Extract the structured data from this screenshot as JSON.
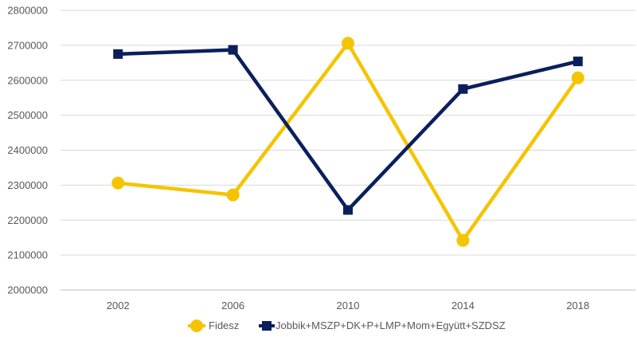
{
  "chart_data": {
    "type": "line",
    "categories": [
      "2002",
      "2006",
      "2010",
      "2014",
      "2018"
    ],
    "series": [
      {
        "name": "Fidesz",
        "values": [
          2306000,
          2272000,
          2706000,
          2142000,
          2607000
        ],
        "color": "#F5C400",
        "marker": "circle"
      },
      {
        "name": "Jobbik+MSZP+DK+P+LMP+Mom+Együtt+SZDSZ",
        "values": [
          2675000,
          2687000,
          2229000,
          2575000,
          2654000
        ],
        "color": "#0B1F5C",
        "marker": "square"
      }
    ],
    "title": "",
    "xlabel": "",
    "ylabel": "",
    "ylim": [
      2000000,
      2800000
    ],
    "yticks": [
      "2000000",
      "2100000",
      "2200000",
      "2300000",
      "2400000",
      "2500000",
      "2600000",
      "2700000",
      "2800000"
    ],
    "grid": true,
    "legend_position": "bottom"
  }
}
